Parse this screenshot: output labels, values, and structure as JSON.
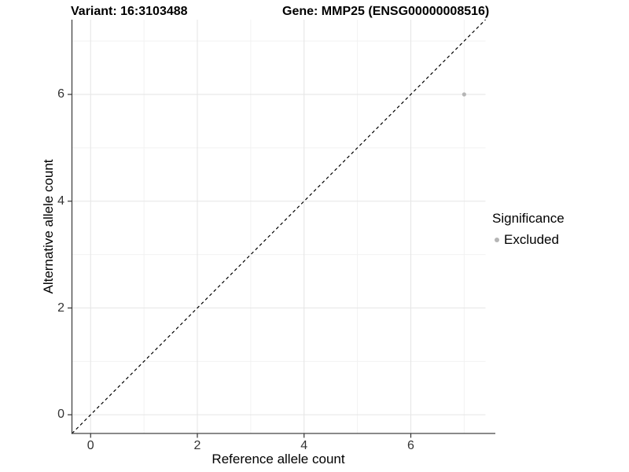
{
  "header": {
    "variant_title": "Variant: 16:3103488",
    "gene_title": "Gene: MMP25 (ENSG00000008516)"
  },
  "chart_data": {
    "type": "scatter",
    "titles": [
      "Variant: 16:3103488",
      "Gene: MMP25 (ENSG00000008516)"
    ],
    "xlabel": "Reference allele count",
    "ylabel": "Alternative allele count",
    "xlim": [
      -0.35,
      7.4
    ],
    "ylim": [
      -0.35,
      7.4
    ],
    "x_ticks": [
      0,
      2,
      4,
      6
    ],
    "y_ticks": [
      0,
      2,
      4,
      6
    ],
    "x_minor_ticks": [
      1,
      3,
      5,
      7
    ],
    "y_minor_ticks": [
      1,
      3,
      5,
      7
    ],
    "grid": "major and minor gridlines on, white panel",
    "identity_line": {
      "style": "dashed",
      "equation": "y = x",
      "color": "#000000"
    },
    "series": [
      {
        "name": "Excluded",
        "color": "#b5b5b5",
        "points": [
          {
            "x": 7,
            "y": 6
          }
        ]
      }
    ],
    "legend": {
      "title": "Significance",
      "position": "right",
      "entries": [
        {
          "label": "Excluded",
          "color": "#b5b5b5"
        }
      ]
    },
    "colors": {
      "grid_major": "#e6e6e6",
      "grid_minor": "#f2f2f2",
      "axis_line": "#444444",
      "tick_mark": "#333333",
      "tick_label": "#333333",
      "point": "#b5b5b5",
      "identity_line": "#000000"
    }
  }
}
